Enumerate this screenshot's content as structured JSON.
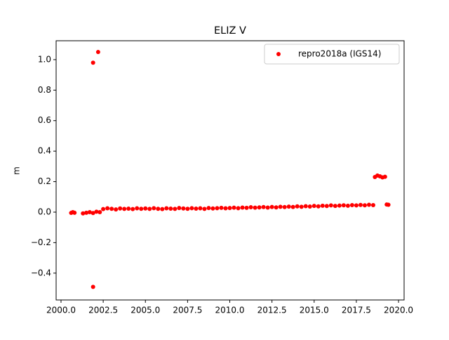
{
  "chart_data": {
    "type": "scatter",
    "title": "ELIZ V",
    "y_label": "m",
    "series": [
      {
        "name": "repro2018a (IGS14)",
        "color": "#ff0000",
        "x": [
          2000.6,
          2000.7,
          2000.8,
          2001.3,
          2001.5,
          2001.7,
          2001.9,
          2002.1,
          2002.3,
          2001.9,
          2002.2,
          2001.9,
          2002.5,
          2002.75,
          2003.0,
          2003.25,
          2003.5,
          2003.75,
          2004.0,
          2004.25,
          2004.5,
          2004.75,
          2005.0,
          2005.25,
          2005.5,
          2005.75,
          2006.0,
          2006.25,
          2006.5,
          2006.75,
          2007.0,
          2007.25,
          2007.5,
          2007.75,
          2008.0,
          2008.25,
          2008.5,
          2008.75,
          2009.0,
          2009.25,
          2009.5,
          2009.75,
          2010.0,
          2010.25,
          2010.5,
          2010.75,
          2011.0,
          2011.25,
          2011.5,
          2011.75,
          2012.0,
          2012.25,
          2012.5,
          2012.75,
          2013.0,
          2013.25,
          2013.5,
          2013.75,
          2014.0,
          2014.25,
          2014.5,
          2014.75,
          2015.0,
          2015.25,
          2015.5,
          2015.75,
          2016.0,
          2016.25,
          2016.5,
          2016.75,
          2017.0,
          2017.25,
          2017.5,
          2017.75,
          2018.0,
          2018.25,
          2018.5,
          2018.6,
          2018.75,
          2018.9,
          2019.05,
          2019.2,
          2019.3,
          2019.4
        ],
        "values": [
          -0.005,
          0.0,
          -0.004,
          -0.008,
          -0.004,
          0.0,
          -0.006,
          0.003,
          0.0,
          0.98,
          1.05,
          -0.49,
          0.02,
          0.025,
          0.022,
          0.018,
          0.024,
          0.021,
          0.023,
          0.02,
          0.025,
          0.022,
          0.024,
          0.021,
          0.026,
          0.022,
          0.02,
          0.025,
          0.023,
          0.021,
          0.027,
          0.024,
          0.022,
          0.026,
          0.023,
          0.025,
          0.021,
          0.027,
          0.024,
          0.026,
          0.028,
          0.025,
          0.027,
          0.029,
          0.026,
          0.03,
          0.028,
          0.032,
          0.029,
          0.031,
          0.033,
          0.03,
          0.034,
          0.031,
          0.035,
          0.033,
          0.036,
          0.034,
          0.038,
          0.035,
          0.039,
          0.037,
          0.041,
          0.038,
          0.042,
          0.04,
          0.044,
          0.041,
          0.043,
          0.045,
          0.042,
          0.046,
          0.044,
          0.047,
          0.045,
          0.048,
          0.046,
          0.23,
          0.24,
          0.235,
          0.228,
          0.232,
          0.05,
          0.048
        ]
      }
    ],
    "xlim": [
      1999.71,
      2020.33
    ],
    "ylim": [
      -0.576,
      1.124
    ],
    "xticks": [
      {
        "value": 2000,
        "label": "2000.0"
      },
      {
        "value": 2002.5,
        "label": "2002.5"
      },
      {
        "value": 2005,
        "label": "2005.0"
      },
      {
        "value": 2007.5,
        "label": "2007.5"
      },
      {
        "value": 2010,
        "label": "2010.0"
      },
      {
        "value": 2012.5,
        "label": "2012.5"
      },
      {
        "value": 2015,
        "label": "2015.0"
      },
      {
        "value": 2017.5,
        "label": "2017.5"
      },
      {
        "value": 2020,
        "label": "2020.0"
      }
    ],
    "yticks": [
      {
        "value": -0.4,
        "label": "−0.4"
      },
      {
        "value": -0.2,
        "label": "−0.2"
      },
      {
        "value": 0,
        "label": "0.0"
      },
      0.2,
      0.4,
      0.6,
      0.8,
      {
        "value": 1,
        "label": "1.0"
      }
    ],
    "grid": false,
    "legend": "upper right"
  }
}
